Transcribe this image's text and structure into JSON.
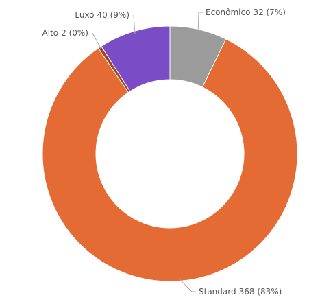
{
  "chart_data": {
    "type": "donut",
    "categories": [
      "Econômico",
      "Standard",
      "Alto",
      "Luxo"
    ],
    "values": [
      32,
      368,
      2,
      40
    ],
    "value_labels": [
      "32 (7%)",
      "368 (83%)",
      "2 (0%)",
      "40 (9%)"
    ],
    "colors": [
      "#9b9b9b",
      "#e56b35",
      "#9e4523",
      "#7a4cc6"
    ]
  }
}
